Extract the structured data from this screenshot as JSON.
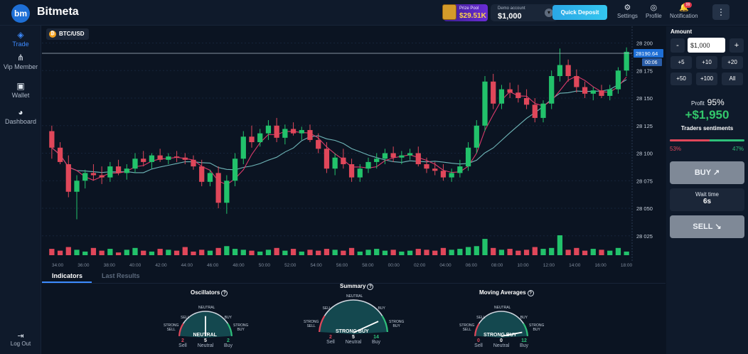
{
  "header": {
    "brand": "Bitmeta",
    "logo_text": "bm",
    "prize_pool_label": "Prize Pool",
    "prize_pool_value": "$29.51K",
    "account_label": "Demo account",
    "account_value": "$1,000",
    "quick_deposit": "Quick Deposit",
    "settings": "Settings",
    "profile": "Profile",
    "notification": "Notification",
    "notification_badge": "99"
  },
  "sidebar": {
    "items": [
      {
        "label": "Trade",
        "icon": "diamond-icon"
      },
      {
        "label": "Vip Member",
        "icon": "share-icon"
      },
      {
        "label": "Wallet",
        "icon": "wallet-icon"
      },
      {
        "label": "Dashboard",
        "icon": "dashboard-icon"
      }
    ],
    "logout": "Log Out"
  },
  "chart_data": {
    "type": "candlestick",
    "pair": "BTC/USD",
    "y_ticks": [
      "28 200",
      "28 175",
      "28 150",
      "28 125",
      "28 100",
      "28 075",
      "28 050",
      "28 025"
    ],
    "x_ticks": [
      "34:00",
      "36:00",
      "38:00",
      "40:00",
      "42:00",
      "44:00",
      "46:00",
      "48:00",
      "50:00",
      "52:00",
      "54:00",
      "56:00",
      "58:00",
      "00:00",
      "02:00",
      "04:00",
      "06:00",
      "08:00",
      "10:00",
      "12:00",
      "14:00",
      "16:00",
      "18:00"
    ],
    "ylim": [
      28010,
      28210
    ],
    "current_price": "28190.64",
    "countdown": "00:06",
    "candles": [
      [
        28120,
        28125,
        28095,
        28105
      ],
      [
        28105,
        28110,
        28090,
        28092
      ],
      [
        28090,
        28098,
        28060,
        28065
      ],
      [
        28065,
        28080,
        28040,
        28075
      ],
      [
        28075,
        28085,
        28068,
        28082
      ],
      [
        28082,
        28090,
        28075,
        28080
      ],
      [
        28080,
        28088,
        28072,
        28078
      ],
      [
        28078,
        28092,
        28074,
        28088
      ],
      [
        28088,
        28094,
        28080,
        28082
      ],
      [
        28082,
        28090,
        28076,
        28086
      ],
      [
        28086,
        28100,
        28082,
        28095
      ],
      [
        28095,
        28102,
        28088,
        28092
      ],
      [
        28092,
        28100,
        28086,
        28098
      ],
      [
        28098,
        28104,
        28092,
        28094
      ],
      [
        28094,
        28100,
        28090,
        28097
      ],
      [
        28097,
        28102,
        28092,
        28096
      ],
      [
        28096,
        28100,
        28090,
        28094
      ],
      [
        28094,
        28098,
        28085,
        28088
      ],
      [
        28088,
        28094,
        28070,
        28074
      ],
      [
        28074,
        28085,
        28070,
        28082
      ],
      [
        28082,
        28088,
        28050,
        28055
      ],
      [
        28055,
        28080,
        28045,
        28075
      ],
      [
        28075,
        28100,
        28070,
        28095
      ],
      [
        28095,
        28120,
        28090,
        28115
      ],
      [
        28115,
        28125,
        28105,
        28110
      ],
      [
        28110,
        28122,
        28106,
        28118
      ],
      [
        28118,
        28130,
        28112,
        28125
      ],
      [
        28125,
        28132,
        28110,
        28114
      ],
      [
        28114,
        28126,
        28108,
        28122
      ],
      [
        28122,
        28128,
        28116,
        28118
      ],
      [
        28118,
        28124,
        28112,
        28121
      ],
      [
        28121,
        28126,
        28110,
        28112
      ],
      [
        28112,
        28118,
        28100,
        28104
      ],
      [
        28104,
        28110,
        28082,
        28086
      ],
      [
        28086,
        28100,
        28080,
        28096
      ],
      [
        28096,
        28104,
        28086,
        28090
      ],
      [
        28090,
        28095,
        28074,
        28078
      ],
      [
        28078,
        28090,
        28074,
        28086
      ],
      [
        28086,
        28096,
        28082,
        28092
      ],
      [
        28092,
        28100,
        28086,
        28095
      ],
      [
        28095,
        28104,
        28090,
        28100
      ],
      [
        28100,
        28106,
        28092,
        28096
      ],
      [
        28096,
        28102,
        28090,
        28098
      ],
      [
        28098,
        28104,
        28094,
        28100
      ],
      [
        28100,
        28106,
        28088,
        28090
      ],
      [
        28090,
        28096,
        28082,
        28086
      ],
      [
        28086,
        28092,
        28080,
        28084
      ],
      [
        28084,
        28090,
        28075,
        28078
      ],
      [
        28078,
        28086,
        28074,
        28082
      ],
      [
        28082,
        28094,
        28078,
        28088
      ],
      [
        28088,
        28110,
        28084,
        28105
      ],
      [
        28105,
        28130,
        28100,
        28125
      ],
      [
        28125,
        28170,
        28120,
        28165
      ],
      [
        28165,
        28172,
        28140,
        28145
      ],
      [
        28145,
        28162,
        28140,
        28158
      ],
      [
        28158,
        28164,
        28150,
        28155
      ],
      [
        28155,
        28162,
        28146,
        28150
      ],
      [
        28150,
        28158,
        28140,
        28144
      ],
      [
        28144,
        28150,
        28128,
        28132
      ],
      [
        28132,
        28148,
        28128,
        28145
      ],
      [
        28145,
        28175,
        28140,
        28170
      ],
      [
        28170,
        28195,
        28165,
        28180
      ],
      [
        28180,
        28185,
        28165,
        28170
      ],
      [
        28170,
        28176,
        28155,
        28160
      ],
      [
        28160,
        28165,
        28150,
        28154
      ],
      [
        28154,
        28160,
        28148,
        28157
      ],
      [
        28157,
        28162,
        28150,
        28152
      ],
      [
        28152,
        28162,
        28148,
        28158
      ],
      [
        28158,
        28178,
        28154,
        28175
      ],
      [
        28175,
        28196,
        28170,
        28192
      ]
    ],
    "volume": [
      7,
      5,
      9,
      6,
      4,
      8,
      5,
      7,
      3,
      6,
      8,
      5,
      4,
      7,
      6,
      5,
      9,
      4,
      6,
      5,
      8,
      10,
      7,
      6,
      5,
      4,
      6,
      8,
      5,
      7,
      4,
      6,
      5,
      7,
      6,
      5,
      8,
      4,
      6,
      7,
      5,
      6,
      4,
      5,
      7,
      6,
      5,
      8,
      6,
      7,
      9,
      10,
      18,
      8,
      6,
      7,
      5,
      6,
      9,
      7,
      8,
      22,
      6,
      8,
      5,
      7,
      6,
      5,
      8,
      4
    ]
  },
  "indicators": {
    "tabs": [
      "Indicators",
      "Last Results"
    ],
    "oscillators": {
      "title": "Oscillators",
      "result": "NEUTRAL",
      "labels": {
        "neutral": "NEUTRAL",
        "sell": "SELL",
        "buy": "BUY",
        "strong_sell": "STRONG SELL",
        "strong_buy": "STRONG BUY"
      },
      "sell_count": "2",
      "neutral_count": "5",
      "buy_count": "2",
      "sell_label": "Sell",
      "neutral_label": "Neutral",
      "buy_label": "Buy",
      "needle": 0.5
    },
    "summary": {
      "title": "Summary",
      "result": "STRONG BUY",
      "labels": {
        "neutral": "NEUTRAL",
        "sell": "SELL",
        "buy": "BUY",
        "strong_sell": "STRONG SELL",
        "strong_buy": "STRONG BUY"
      },
      "sell_count": "2",
      "neutral_count": "5",
      "buy_count": "14",
      "sell_label": "Sell",
      "neutral_label": "Neutral",
      "buy_label": "Buy",
      "needle": 0.85
    },
    "moving_averages": {
      "title": "Moving Averages",
      "result": "STRONG BUY",
      "labels": {
        "neutral": "NEUTRAL",
        "sell": "SELL",
        "buy": "BUY",
        "strong_sell": "STRONG SELL",
        "strong_buy": "STRONG BUY"
      },
      "sell_count": "0",
      "neutral_count": "0",
      "buy_count": "12",
      "sell_label": "Sell",
      "neutral_label": "Neutral",
      "buy_label": "Buy",
      "needle": 0.92
    }
  },
  "trade_panel": {
    "amount_label": "Amount",
    "minus": "-",
    "plus": "+",
    "amount_value": "$1,000",
    "quick_amounts": [
      "+5",
      "+10",
      "+20",
      "+50",
      "+100",
      "All"
    ],
    "profit_label": "Profit",
    "profit_percent": "95%",
    "profit_value": "+$1,950",
    "sentiment_label": "Traders sentiments",
    "sell_pct": "53%",
    "buy_pct": "47%",
    "sell_fraction": 0.53,
    "buy_button": "BUY",
    "wait_label": "Wait time",
    "wait_value": "6s",
    "sell_button": "SELL"
  },
  "colors": {
    "up": "#22c26b",
    "down": "#e0475a",
    "ma_fast": "#d93a6b",
    "ma_slow": "#6fb6b8",
    "accent": "#3d8bff"
  }
}
